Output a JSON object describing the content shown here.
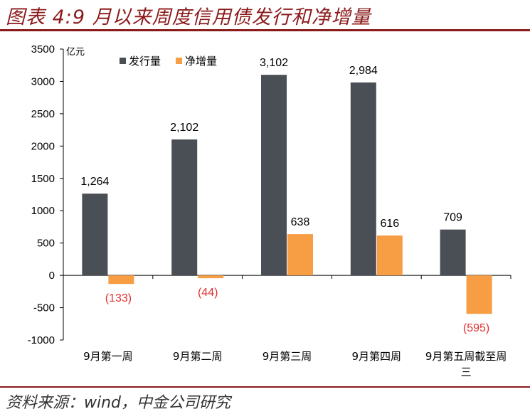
{
  "header": {
    "title": "图表 4:9 月以来周度信用债发行和净增量"
  },
  "footer": {
    "source": "资料来源：wind，中金公司研究"
  },
  "colors": {
    "issuance": "#4a4e55",
    "net": "#f79d44",
    "negative_label": "#e03030",
    "accent": "#8b1a1a"
  },
  "chart_data": {
    "type": "bar",
    "title": "图表 4:9 月以来周度信用债发行和净增量",
    "unit_label": "亿元",
    "categories": [
      "9月第一周",
      "9月第二周",
      "9月第三周",
      "9月第四周",
      "9月第五周截至周三"
    ],
    "category_lines": [
      [
        "9月第一周"
      ],
      [
        "9月第二周"
      ],
      [
        "9月第三周"
      ],
      [
        "9月第四周"
      ],
      [
        "9月第五周截至周",
        "三"
      ]
    ],
    "series": [
      {
        "name": "发行量",
        "values": [
          1264,
          2102,
          3102,
          2984,
          709
        ],
        "labels": [
          "1,264",
          "2,102",
          "3,102",
          "2,984",
          "709"
        ]
      },
      {
        "name": "净增量",
        "values": [
          -133,
          -44,
          638,
          616,
          -595
        ],
        "labels": [
          "(133)",
          "(44)",
          "638",
          "616",
          "(595)"
        ]
      }
    ],
    "ylim": [
      -1000,
      3500
    ],
    "yticks": [
      3500,
      3000,
      2500,
      2000,
      1500,
      1000,
      500,
      0,
      -500,
      -1000
    ],
    "xlabel": "",
    "ylabel": "",
    "legend_position": "top-left",
    "grid": false
  }
}
